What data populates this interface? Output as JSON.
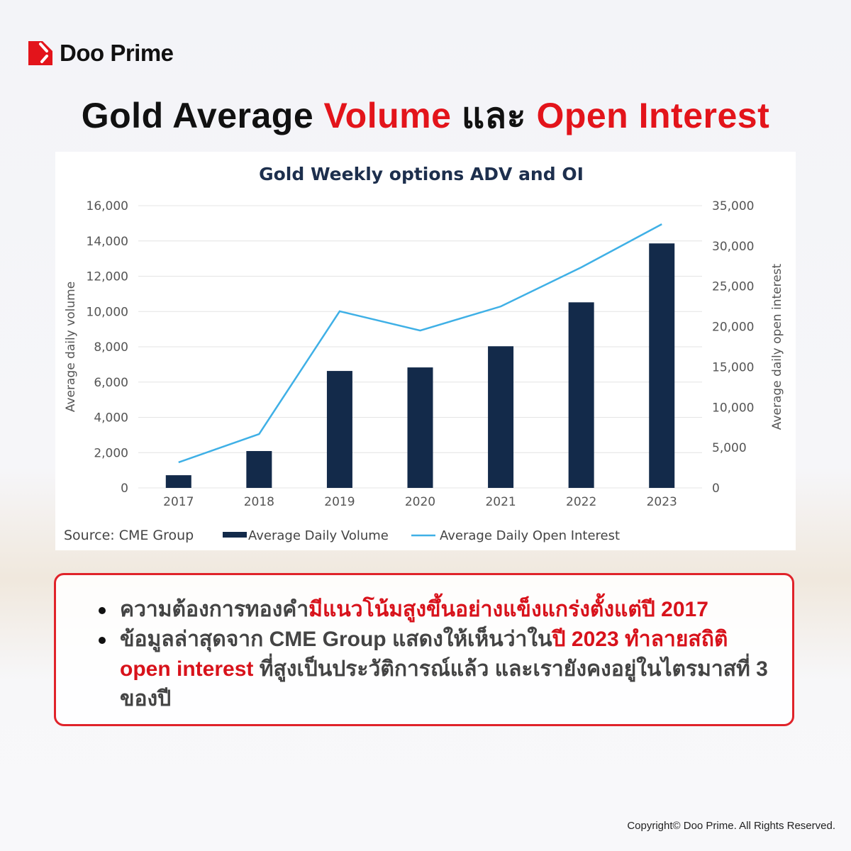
{
  "brand": {
    "name": "Doo Prime",
    "accent": "#e3141b"
  },
  "headline": {
    "part1": "Gold Average ",
    "part2": "Volume",
    "part3": " และ ",
    "part4": "Open Interest"
  },
  "chart_data": {
    "type": "bar+line",
    "title": "Gold Weekly options ADV and OI",
    "categories": [
      "2017",
      "2018",
      "2019",
      "2020",
      "2021",
      "2022",
      "2023"
    ],
    "ylabel_left": "Average daily volume",
    "ylabel_right": "Average daily open interest",
    "ylim_left": [
      0,
      16000
    ],
    "ylim_right": [
      0,
      35000
    ],
    "yticks_left": [
      "0",
      "2,000",
      "4,000",
      "6,000",
      "8,000",
      "10,000",
      "12,000",
      "14,000",
      "16,000"
    ],
    "yticks_right": [
      "0",
      "5,000",
      "10,000",
      "15,000",
      "20,000",
      "25,000",
      "30,000",
      "35,000"
    ],
    "grid": true,
    "legend_placement": "bottom",
    "source": "Source: CME Group",
    "series": [
      {
        "name": "Average Daily Volume",
        "type": "bar",
        "axis": "left",
        "color": "#132a4a",
        "values": [
          720,
          2090,
          6630,
          6830,
          8030,
          10520,
          13860
        ]
      },
      {
        "name": "Average Daily Open Interest",
        "type": "line",
        "axis": "right",
        "color": "#3fb0e6",
        "values": [
          3170,
          6680,
          21900,
          19520,
          22500,
          27350,
          32700
        ]
      }
    ]
  },
  "notes": [
    {
      "plain": "ความต้องการทองคำ",
      "red": "มีแนวโน้มสูงขึ้นอย่างแข็งแกร่งตั้งแต่ปี 2017"
    },
    {
      "plain": "ข้อมูลล่าสุดจาก CME Group แสดงให้เห็นว่าใน",
      "red": "ปี 2023 ทำลายสถิติ open interest",
      "plain2": " ที่สูงเป็นประวัติการณ์แล้ว และเรายังคงอยู่ในไตรมาสที่ 3 ของปี"
    }
  ],
  "copyright": "Copyright© Doo Prime. All Rights Reserved."
}
